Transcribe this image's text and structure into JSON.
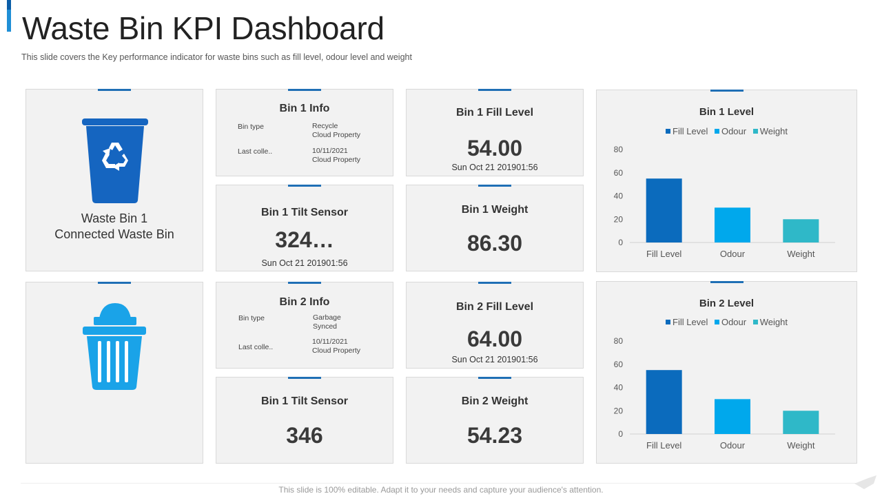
{
  "header": {
    "title": "Waste Bin KPI Dashboard",
    "subtitle": "This slide covers the Key performance indicator for waste bins such as fill level, odour level and weight"
  },
  "bin1_card": {
    "name_line1": "Waste Bin 1",
    "name_line2": "Connected Waste Bin",
    "icon": "recycle-bin-icon"
  },
  "bin2_card": {
    "icon": "trash-bin-icon"
  },
  "bin1_info": {
    "title": "Bin 1 Info",
    "type_label": "Bin type",
    "type_value_1": "Recycle",
    "type_value_2": "Cloud Property",
    "collected_label": "Last colle..",
    "collected_value_1": "10/11/2021",
    "collected_value_2": "Cloud Property"
  },
  "bin2_info": {
    "title": "Bin 2 Info",
    "type_label": "Bin type",
    "type_value_1": "Garbage",
    "type_value_2": "Synced",
    "collected_label": "Last colle..",
    "collected_value_1": "10/11/2021",
    "collected_value_2": "Cloud Property"
  },
  "bin1_fill": {
    "title": "Bin 1 Fill Level",
    "value": "54.00",
    "date": "Sun Oct 21 201901:56"
  },
  "bin1_tilt": {
    "title": "Bin 1 Tilt Sensor",
    "value": "324…",
    "date": "Sun Oct 21 201901:56"
  },
  "bin1_weight": {
    "title": "Bin 1 Weight",
    "value": "86.30"
  },
  "bin2_fill": {
    "title": "Bin 2 Fill Level",
    "value": "64.00",
    "date": "Sun Oct 21 201901:56"
  },
  "bin2_tilt": {
    "title": "Bin 1 Tilt Sensor",
    "value": "346"
  },
  "bin2_weight": {
    "title": "Bin 2 Weight",
    "value": "54.23"
  },
  "footer": {
    "text": "This slide is 100% editable. Adapt it to your needs and capture your audience's attention."
  },
  "colors": {
    "accent": "#1f6fb5",
    "fill_level": "#0b6bbd",
    "odour": "#00a8ec",
    "weight": "#2fb8c8",
    "bin1_icon": "#1565c0",
    "bin2_icon": "#1aa3e8"
  },
  "chart_data": [
    {
      "type": "bar",
      "title": "Bin 1 Level",
      "categories": [
        "Fill Level",
        "Odour",
        "Weight"
      ],
      "values": [
        55,
        30,
        20
      ],
      "legend": [
        "Fill Level",
        "Odour",
        "Weight"
      ],
      "legend_position": "top",
      "ylim": [
        0,
        80
      ],
      "yticks": [
        "0",
        "20",
        "40",
        "60",
        "80"
      ],
      "grid": false
    },
    {
      "type": "bar",
      "title": "Bin 2 Level",
      "categories": [
        "Fill Level",
        "Odour",
        "Weight"
      ],
      "values": [
        55,
        30,
        20
      ],
      "legend": [
        "Fill Level",
        "Odour",
        "Weight"
      ],
      "legend_position": "top",
      "ylim": [
        0,
        80
      ],
      "yticks": [
        "0",
        "20",
        "40",
        "60",
        "80"
      ],
      "grid": false
    }
  ]
}
